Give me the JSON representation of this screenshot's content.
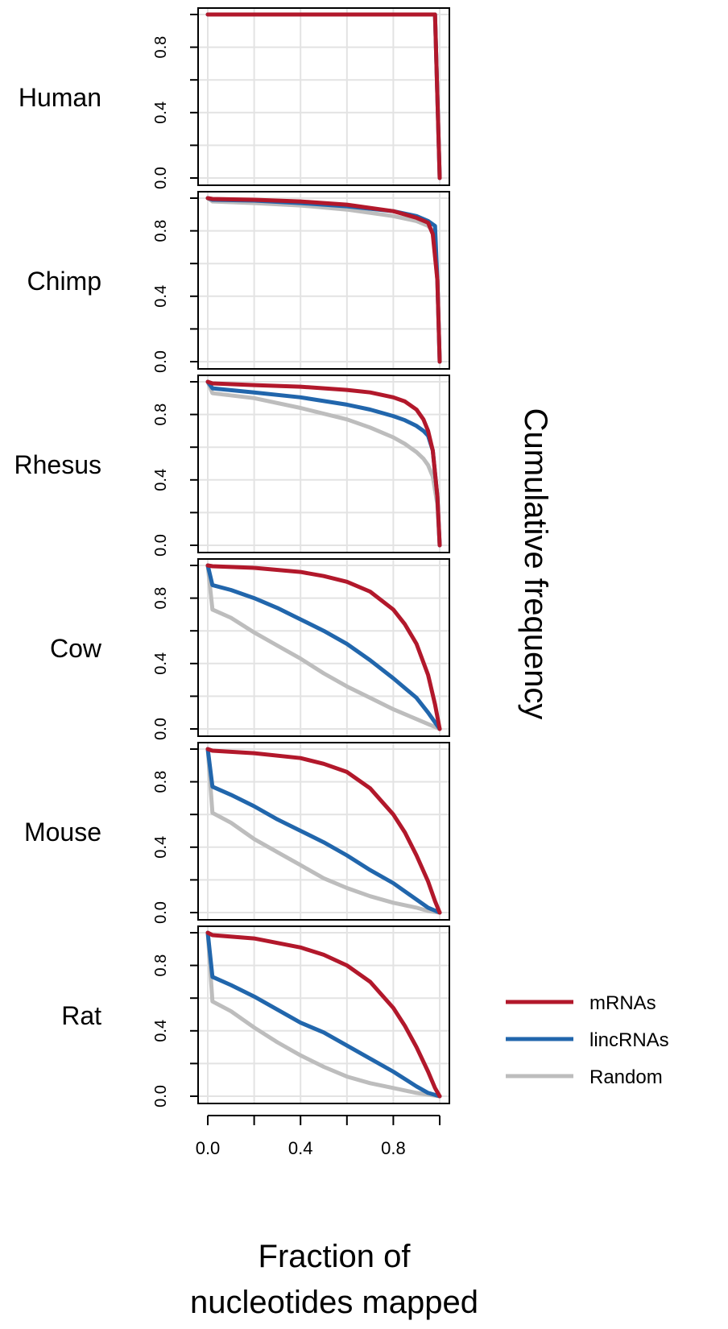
{
  "chart_data": {
    "type": "line",
    "layout": "small-multiples-vertical",
    "xlabel_lines": [
      "Fraction of",
      "nucleotides mapped"
    ],
    "ylabel": "Cumulative frequency",
    "xlim": [
      0,
      1
    ],
    "ylim": [
      0,
      1
    ],
    "x_ticks": [
      0.0,
      0.2,
      0.4,
      0.6,
      0.8,
      1.0
    ],
    "x_tick_labels": [
      "0.0",
      "",
      "0.4",
      "",
      "0.8",
      ""
    ],
    "y_ticks": [
      0.0,
      0.2,
      0.4,
      0.6,
      0.8,
      1.0
    ],
    "y_tick_labels": [
      "0.0",
      "",
      "0.4",
      "",
      "0.8",
      ""
    ],
    "grid": true,
    "legend_position": "right",
    "series_styles": [
      {
        "name": "mRNAs",
        "color": "#B2182B"
      },
      {
        "name": "lincRNAs",
        "color": "#2166AC"
      },
      {
        "name": "Random",
        "color": "#BDBDBD"
      }
    ],
    "panels": [
      {
        "label": "Human",
        "series": [
          {
            "name": "mRNAs",
            "points": [
              [
                0,
                1
              ],
              [
                0.98,
                1
              ],
              [
                0.99,
                0.5
              ],
              [
                1,
                0
              ]
            ]
          },
          {
            "name": "lincRNAs",
            "points": [
              [
                0,
                1
              ],
              [
                0.98,
                1
              ],
              [
                0.99,
                0.5
              ],
              [
                1,
                0
              ]
            ]
          },
          {
            "name": "Random",
            "points": [
              [
                0,
                1
              ],
              [
                0.98,
                1
              ],
              [
                0.99,
                0.5
              ],
              [
                1,
                0
              ]
            ]
          }
        ]
      },
      {
        "label": "Chimp",
        "series": [
          {
            "name": "mRNAs",
            "points": [
              [
                0,
                1
              ],
              [
                0.02,
                0.995
              ],
              [
                0.2,
                0.99
              ],
              [
                0.4,
                0.98
              ],
              [
                0.6,
                0.96
              ],
              [
                0.8,
                0.92
              ],
              [
                0.9,
                0.88
              ],
              [
                0.95,
                0.85
              ],
              [
                0.97,
                0.78
              ],
              [
                0.99,
                0.5
              ],
              [
                1,
                0
              ]
            ]
          },
          {
            "name": "lincRNAs",
            "points": [
              [
                0,
                1
              ],
              [
                0.02,
                0.99
              ],
              [
                0.2,
                0.985
              ],
              [
                0.4,
                0.97
              ],
              [
                0.6,
                0.95
              ],
              [
                0.8,
                0.92
              ],
              [
                0.9,
                0.89
              ],
              [
                0.95,
                0.86
              ],
              [
                0.98,
                0.83
              ],
              [
                0.99,
                0.5
              ],
              [
                1,
                0
              ]
            ]
          },
          {
            "name": "Random",
            "points": [
              [
                0,
                1
              ],
              [
                0.02,
                0.98
              ],
              [
                0.2,
                0.97
              ],
              [
                0.4,
                0.955
              ],
              [
                0.6,
                0.93
              ],
              [
                0.8,
                0.89
              ],
              [
                0.9,
                0.86
              ],
              [
                0.95,
                0.83
              ],
              [
                0.97,
                0.8
              ],
              [
                0.99,
                0.5
              ],
              [
                1,
                0
              ]
            ]
          }
        ]
      },
      {
        "label": "Rhesus",
        "series": [
          {
            "name": "mRNAs",
            "points": [
              [
                0,
                1
              ],
              [
                0.02,
                0.99
              ],
              [
                0.2,
                0.98
              ],
              [
                0.4,
                0.97
              ],
              [
                0.6,
                0.95
              ],
              [
                0.7,
                0.935
              ],
              [
                0.8,
                0.905
              ],
              [
                0.85,
                0.88
              ],
              [
                0.9,
                0.83
              ],
              [
                0.93,
                0.77
              ],
              [
                0.95,
                0.7
              ],
              [
                0.97,
                0.58
              ],
              [
                0.99,
                0.3
              ],
              [
                1,
                0
              ]
            ]
          },
          {
            "name": "lincRNAs",
            "points": [
              [
                0,
                1
              ],
              [
                0.02,
                0.96
              ],
              [
                0.2,
                0.935
              ],
              [
                0.4,
                0.905
              ],
              [
                0.6,
                0.86
              ],
              [
                0.7,
                0.83
              ],
              [
                0.8,
                0.79
              ],
              [
                0.85,
                0.765
              ],
              [
                0.9,
                0.73
              ],
              [
                0.93,
                0.7
              ],
              [
                0.95,
                0.67
              ],
              [
                0.97,
                0.58
              ],
              [
                0.99,
                0.3
              ],
              [
                1,
                0
              ]
            ]
          },
          {
            "name": "Random",
            "points": [
              [
                0,
                1
              ],
              [
                0.02,
                0.93
              ],
              [
                0.2,
                0.9
              ],
              [
                0.4,
                0.84
              ],
              [
                0.6,
                0.77
              ],
              [
                0.7,
                0.72
              ],
              [
                0.8,
                0.66
              ],
              [
                0.85,
                0.62
              ],
              [
                0.9,
                0.57
              ],
              [
                0.93,
                0.53
              ],
              [
                0.95,
                0.49
              ],
              [
                0.97,
                0.42
              ],
              [
                0.99,
                0.25
              ],
              [
                1,
                0
              ]
            ]
          }
        ]
      },
      {
        "label": "Cow",
        "series": [
          {
            "name": "mRNAs",
            "points": [
              [
                0,
                1
              ],
              [
                0.02,
                0.995
              ],
              [
                0.2,
                0.985
              ],
              [
                0.4,
                0.96
              ],
              [
                0.5,
                0.935
              ],
              [
                0.6,
                0.9
              ],
              [
                0.7,
                0.84
              ],
              [
                0.8,
                0.73
              ],
              [
                0.85,
                0.64
              ],
              [
                0.9,
                0.52
              ],
              [
                0.95,
                0.33
              ],
              [
                0.98,
                0.15
              ],
              [
                1,
                0
              ]
            ]
          },
          {
            "name": "lincRNAs",
            "points": [
              [
                0,
                1
              ],
              [
                0.02,
                0.88
              ],
              [
                0.1,
                0.85
              ],
              [
                0.2,
                0.8
              ],
              [
                0.3,
                0.74
              ],
              [
                0.4,
                0.67
              ],
              [
                0.5,
                0.6
              ],
              [
                0.6,
                0.52
              ],
              [
                0.7,
                0.42
              ],
              [
                0.8,
                0.31
              ],
              [
                0.9,
                0.19
              ],
              [
                0.95,
                0.1
              ],
              [
                1,
                0
              ]
            ]
          },
          {
            "name": "Random",
            "points": [
              [
                0,
                1
              ],
              [
                0.02,
                0.73
              ],
              [
                0.1,
                0.68
              ],
              [
                0.2,
                0.59
              ],
              [
                0.3,
                0.51
              ],
              [
                0.4,
                0.43
              ],
              [
                0.5,
                0.34
              ],
              [
                0.6,
                0.26
              ],
              [
                0.7,
                0.19
              ],
              [
                0.8,
                0.12
              ],
              [
                0.9,
                0.06
              ],
              [
                0.95,
                0.03
              ],
              [
                1,
                0
              ]
            ]
          }
        ]
      },
      {
        "label": "Mouse",
        "series": [
          {
            "name": "mRNAs",
            "points": [
              [
                0,
                1
              ],
              [
                0.02,
                0.99
              ],
              [
                0.2,
                0.975
              ],
              [
                0.4,
                0.945
              ],
              [
                0.5,
                0.91
              ],
              [
                0.6,
                0.86
              ],
              [
                0.7,
                0.76
              ],
              [
                0.8,
                0.6
              ],
              [
                0.85,
                0.49
              ],
              [
                0.9,
                0.35
              ],
              [
                0.95,
                0.19
              ],
              [
                0.98,
                0.07
              ],
              [
                1,
                0
              ]
            ]
          },
          {
            "name": "lincRNAs",
            "points": [
              [
                0,
                1
              ],
              [
                0.02,
                0.77
              ],
              [
                0.1,
                0.72
              ],
              [
                0.2,
                0.65
              ],
              [
                0.3,
                0.57
              ],
              [
                0.4,
                0.5
              ],
              [
                0.5,
                0.43
              ],
              [
                0.6,
                0.35
              ],
              [
                0.7,
                0.26
              ],
              [
                0.8,
                0.18
              ],
              [
                0.9,
                0.08
              ],
              [
                0.95,
                0.03
              ],
              [
                1,
                0
              ]
            ]
          },
          {
            "name": "Random",
            "points": [
              [
                0,
                1
              ],
              [
                0.02,
                0.61
              ],
              [
                0.1,
                0.55
              ],
              [
                0.2,
                0.45
              ],
              [
                0.3,
                0.37
              ],
              [
                0.4,
                0.29
              ],
              [
                0.5,
                0.21
              ],
              [
                0.6,
                0.15
              ],
              [
                0.7,
                0.1
              ],
              [
                0.8,
                0.06
              ],
              [
                0.9,
                0.03
              ],
              [
                0.95,
                0.01
              ],
              [
                1,
                0
              ]
            ]
          }
        ]
      },
      {
        "label": "Rat",
        "series": [
          {
            "name": "mRNAs",
            "points": [
              [
                0,
                1
              ],
              [
                0.02,
                0.985
              ],
              [
                0.2,
                0.965
              ],
              [
                0.4,
                0.91
              ],
              [
                0.5,
                0.865
              ],
              [
                0.6,
                0.8
              ],
              [
                0.7,
                0.7
              ],
              [
                0.8,
                0.54
              ],
              [
                0.85,
                0.43
              ],
              [
                0.9,
                0.3
              ],
              [
                0.95,
                0.15
              ],
              [
                0.98,
                0.05
              ],
              [
                1,
                0
              ]
            ]
          },
          {
            "name": "lincRNAs",
            "points": [
              [
                0,
                1
              ],
              [
                0.02,
                0.73
              ],
              [
                0.1,
                0.68
              ],
              [
                0.2,
                0.61
              ],
              [
                0.3,
                0.53
              ],
              [
                0.4,
                0.45
              ],
              [
                0.5,
                0.39
              ],
              [
                0.6,
                0.31
              ],
              [
                0.7,
                0.23
              ],
              [
                0.8,
                0.15
              ],
              [
                0.9,
                0.06
              ],
              [
                0.95,
                0.02
              ],
              [
                1,
                0
              ]
            ]
          },
          {
            "name": "Random",
            "points": [
              [
                0,
                1
              ],
              [
                0.02,
                0.58
              ],
              [
                0.1,
                0.52
              ],
              [
                0.2,
                0.42
              ],
              [
                0.3,
                0.33
              ],
              [
                0.4,
                0.25
              ],
              [
                0.5,
                0.18
              ],
              [
                0.6,
                0.12
              ],
              [
                0.7,
                0.08
              ],
              [
                0.8,
                0.05
              ],
              [
                0.9,
                0.02
              ],
              [
                0.95,
                0.01
              ],
              [
                1,
                0
              ]
            ]
          }
        ]
      }
    ]
  }
}
